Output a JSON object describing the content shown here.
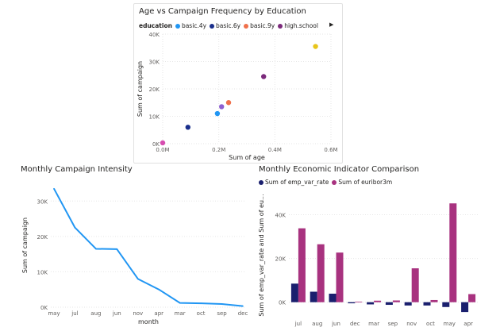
{
  "charts": {
    "scatter": {
      "title": "Age vs Campaign Frequency by Education",
      "legend_title": "education",
      "legend_items": [
        {
          "label": "basic.4y",
          "color": "#2196F3"
        },
        {
          "label": "basic.6y",
          "color": "#1A2F8C"
        },
        {
          "label": "basic.9y",
          "color": "#F0704B"
        },
        {
          "label": "high.school",
          "color": "#7B2A7B"
        }
      ],
      "more_icon": "chevron-right-icon"
    },
    "line": {
      "title": "Monthly Campaign Intensity"
    },
    "bar": {
      "title": "Monthly Economic Indicator Comparison",
      "legend_items": [
        {
          "label": "Sum of emp_var_rate",
          "color": "#1A1F6E"
        },
        {
          "label": "Sum of euribor3m",
          "color": "#A8327F"
        }
      ]
    }
  },
  "chart_data": [
    {
      "type": "scatter",
      "title": "Age vs Campaign Frequency by Education",
      "xlabel": "Sum of age",
      "ylabel": "Sum of campaign",
      "xlim": [
        0,
        0.6
      ],
      "ylim": [
        0,
        40000
      ],
      "x_ticks": [
        "0.0M",
        "0.2M",
        "0.4M",
        "0.6M"
      ],
      "y_ticks": [
        "0K",
        "10K",
        "20K",
        "30K",
        "40K"
      ],
      "grid": true,
      "points": [
        {
          "x": 0.0,
          "y": 300,
          "color": "#D64DB0"
        },
        {
          "x": 0.09,
          "y": 6000,
          "color": "#1A2F8C"
        },
        {
          "x": 0.195,
          "y": 11000,
          "color": "#2196F3"
        },
        {
          "x": 0.21,
          "y": 13500,
          "color": "#8E5FD0"
        },
        {
          "x": 0.235,
          "y": 15000,
          "color": "#F0704B"
        },
        {
          "x": 0.36,
          "y": 24500,
          "color": "#7B2A7B"
        },
        {
          "x": 0.545,
          "y": 35500,
          "color": "#E8C51A"
        }
      ]
    },
    {
      "type": "line",
      "title": "Monthly Campaign Intensity",
      "xlabel": "month",
      "ylabel": "Sum of campaign",
      "categories": [
        "may",
        "jul",
        "aug",
        "jun",
        "nov",
        "apr",
        "mar",
        "oct",
        "sep",
        "dec"
      ],
      "values": [
        33500,
        22500,
        16500,
        16400,
        8000,
        5000,
        1200,
        1100,
        900,
        300
      ],
      "ylim": [
        0,
        35000
      ],
      "y_ticks": [
        "0K",
        "10K",
        "20K",
        "30K"
      ],
      "color": "#2196F3",
      "grid": true
    },
    {
      "type": "bar",
      "title": "Monthly Economic Indicator Comparison",
      "xlabel": "month",
      "ylabel": "Sum of emp_var_rate and Sum of eu...",
      "categories": [
        "jul",
        "aug",
        "jun",
        "dec",
        "mar",
        "sep",
        "nov",
        "oct",
        "may",
        "apr"
      ],
      "series": [
        {
          "name": "Sum of emp_var_rate",
          "color": "#1A1F6E",
          "values": [
            8500,
            4800,
            3900,
            -500,
            -1000,
            -1200,
            -1500,
            -1500,
            -2200,
            -4500
          ]
        },
        {
          "name": "Sum of euribor3m",
          "color": "#A8327F",
          "values": [
            33800,
            26500,
            22700,
            200,
            700,
            800,
            15500,
            1000,
            45200,
            3700
          ]
        }
      ],
      "ylim": [
        -7000,
        50000
      ],
      "y_ticks": [
        "0K",
        "20K",
        "40K"
      ],
      "grid": true
    }
  ]
}
